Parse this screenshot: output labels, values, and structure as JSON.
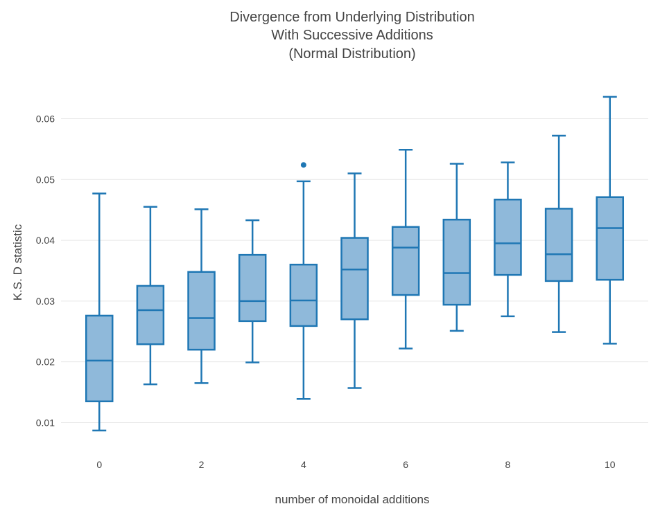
{
  "chart_data": {
    "type": "box",
    "title_lines": [
      "Divergence from Underlying Distribution",
      "With Successive Additions",
      "(Normal Distribution)"
    ],
    "xlabel": "number of monoidal additions",
    "ylabel": "K.S. D statistic",
    "x_ticks": [
      "0",
      "2",
      "4",
      "6",
      "8",
      "10"
    ],
    "x_tick_values": [
      0,
      2,
      4,
      6,
      8,
      10
    ],
    "y_ticks": [
      "0.01",
      "0.02",
      "0.03",
      "0.04",
      "0.05",
      "0.06"
    ],
    "y_tick_values": [
      0.01,
      0.02,
      0.03,
      0.04,
      0.05,
      0.06
    ],
    "xlim": [
      -0.75,
      10.75
    ],
    "ylim": [
      0.0055,
      0.067
    ],
    "grid": true,
    "colors": {
      "box_line": "#1f77b4",
      "box_fill": "#8fb9da",
      "grid": "#e6e6e6",
      "text": "#444444"
    },
    "boxes": [
      {
        "x": 0,
        "whisker_low": 0.0087,
        "q1": 0.0135,
        "median": 0.0202,
        "q3": 0.0276,
        "whisker_high": 0.0477,
        "outliers": []
      },
      {
        "x": 1,
        "whisker_low": 0.0163,
        "q1": 0.0229,
        "median": 0.0285,
        "q3": 0.0325,
        "whisker_high": 0.0455,
        "outliers": []
      },
      {
        "x": 2,
        "whisker_low": 0.0165,
        "q1": 0.022,
        "median": 0.0272,
        "q3": 0.0348,
        "whisker_high": 0.0451,
        "outliers": []
      },
      {
        "x": 3,
        "whisker_low": 0.0199,
        "q1": 0.0267,
        "median": 0.03,
        "q3": 0.0376,
        "whisker_high": 0.0433,
        "outliers": []
      },
      {
        "x": 4,
        "whisker_low": 0.0139,
        "q1": 0.0259,
        "median": 0.0301,
        "q3": 0.036,
        "whisker_high": 0.0497,
        "outliers": [
          0.0524
        ]
      },
      {
        "x": 5,
        "whisker_low": 0.0157,
        "q1": 0.027,
        "median": 0.0352,
        "q3": 0.0404,
        "whisker_high": 0.051,
        "outliers": []
      },
      {
        "x": 6,
        "whisker_low": 0.0222,
        "q1": 0.031,
        "median": 0.0388,
        "q3": 0.0422,
        "whisker_high": 0.0549,
        "outliers": []
      },
      {
        "x": 7,
        "whisker_low": 0.0251,
        "q1": 0.0294,
        "median": 0.0346,
        "q3": 0.0434,
        "whisker_high": 0.0526,
        "outliers": []
      },
      {
        "x": 8,
        "whisker_low": 0.0275,
        "q1": 0.0343,
        "median": 0.0395,
        "q3": 0.0467,
        "whisker_high": 0.0528,
        "outliers": []
      },
      {
        "x": 9,
        "whisker_low": 0.0249,
        "q1": 0.0333,
        "median": 0.0377,
        "q3": 0.0452,
        "whisker_high": 0.0572,
        "outliers": []
      },
      {
        "x": 10,
        "whisker_low": 0.023,
        "q1": 0.0335,
        "median": 0.042,
        "q3": 0.0471,
        "whisker_high": 0.0636,
        "outliers": []
      }
    ]
  }
}
